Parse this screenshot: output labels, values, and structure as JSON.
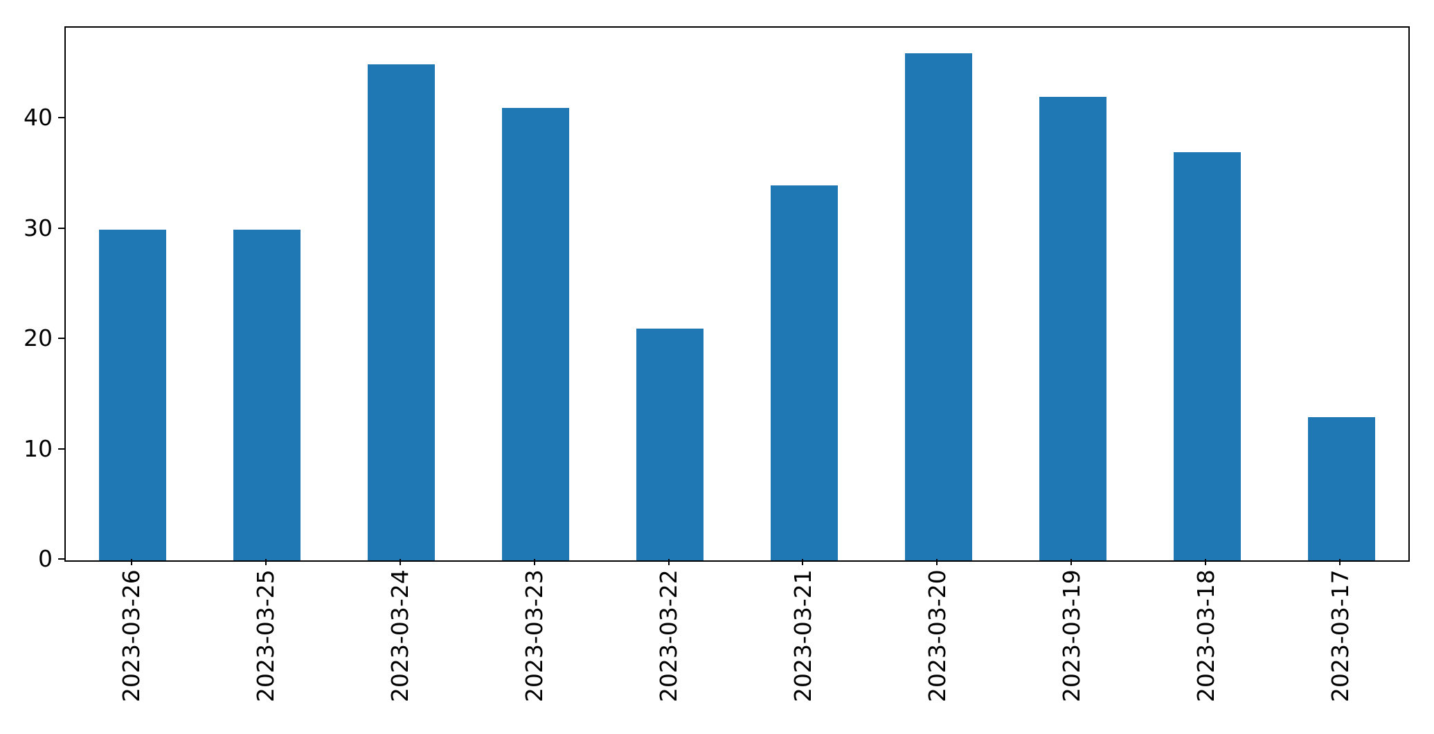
{
  "chart_data": {
    "type": "bar",
    "categories": [
      "2023-03-26",
      "2023-03-25",
      "2023-03-24",
      "2023-03-23",
      "2023-03-22",
      "2023-03-21",
      "2023-03-20",
      "2023-03-19",
      "2023-03-18",
      "2023-03-17"
    ],
    "values": [
      30,
      30,
      45,
      41,
      21,
      34,
      46,
      42,
      37,
      13
    ],
    "title": "",
    "xlabel": "",
    "ylabel": "",
    "ylim": [
      0,
      48.3
    ],
    "yticks": [
      0,
      10,
      20,
      30,
      40
    ],
    "x_tick_rotation": 90,
    "grid": false,
    "legend": null,
    "bar_color": "#1f77b4",
    "bar_width_fraction": 0.5,
    "spine_color": "#000000",
    "background_color": "#ffffff",
    "tick_label_color": "#000000"
  }
}
